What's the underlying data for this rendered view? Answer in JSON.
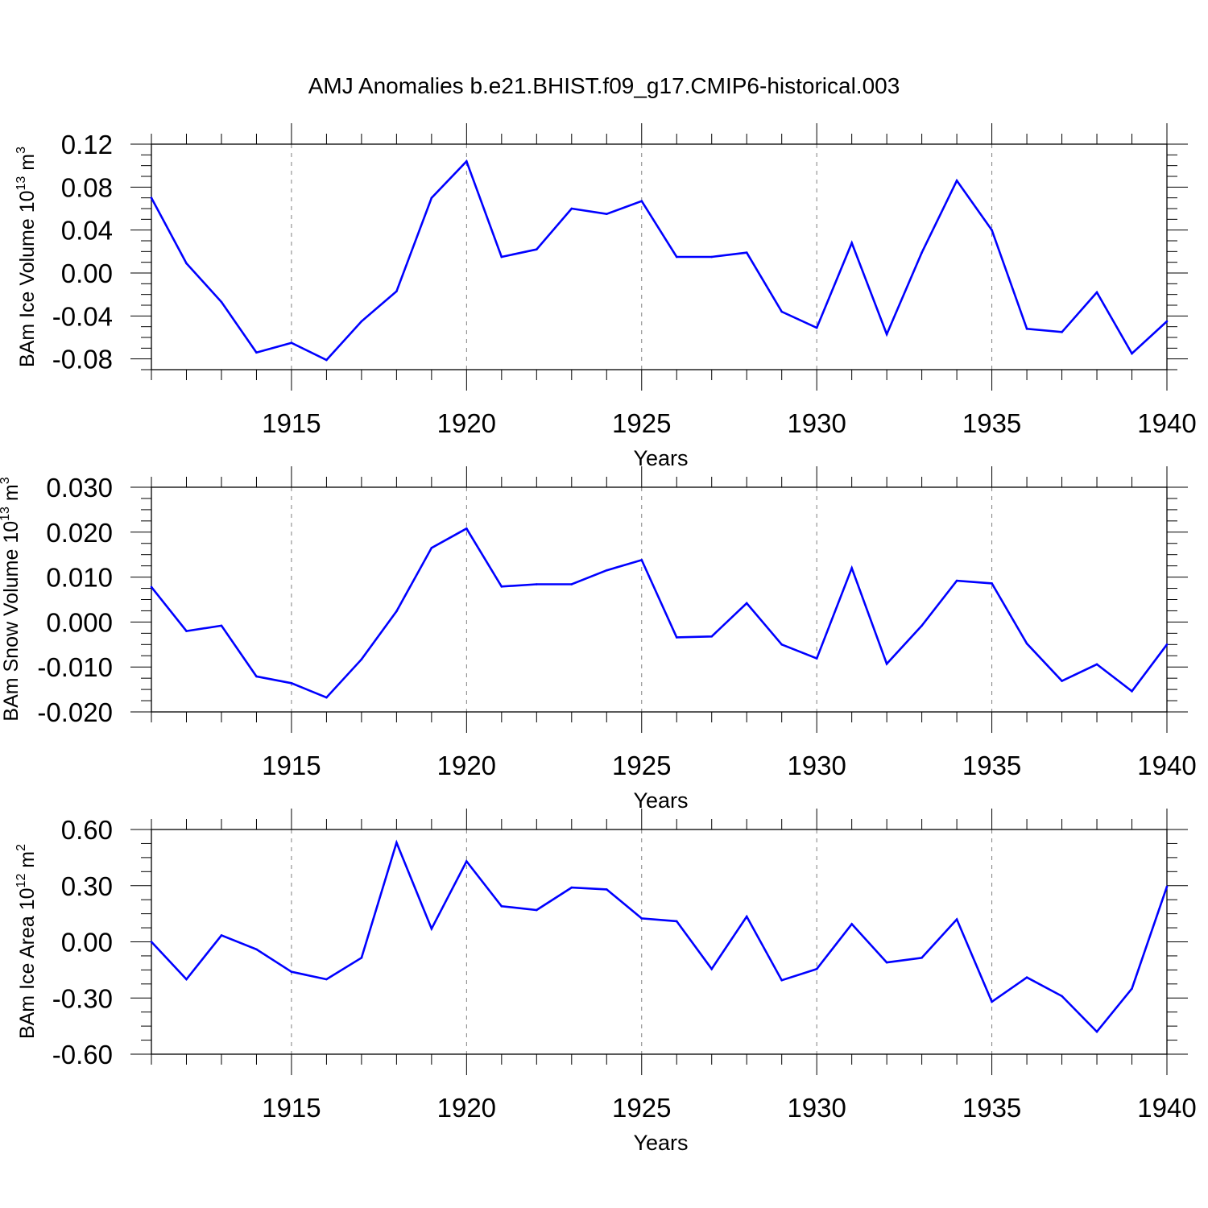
{
  "title": "AMJ Anomalies b.e21.BHIST.f09_g17.CMIP6-historical.003",
  "colors": {
    "line": "#0000ff",
    "axis": "#000000",
    "grid": "#808080"
  },
  "chart_data": [
    {
      "type": "line",
      "ylabel": {
        "text": "BAm Ice Volume 10",
        "sup": "13",
        "unit": " m",
        "unit_sup": "3"
      },
      "xlabel": "Years",
      "x_ticks": [
        "1915",
        "1920",
        "1925",
        "1930",
        "1935",
        "1940"
      ],
      "y_ticks": [
        "0.12",
        "0.08",
        "0.04",
        "0.00",
        "-0.04",
        "-0.08"
      ],
      "ylim": [
        -0.09,
        0.12
      ],
      "xlim": [
        1911,
        1940
      ],
      "grid": "vertical dashed at major x ticks",
      "x": [
        1911,
        1912,
        1913,
        1914,
        1915,
        1916,
        1917,
        1918,
        1919,
        1920,
        1921,
        1922,
        1923,
        1924,
        1925,
        1926,
        1927,
        1928,
        1929,
        1930,
        1931,
        1932,
        1933,
        1934,
        1935,
        1936,
        1937,
        1938,
        1939,
        1940
      ],
      "values": [
        0.07,
        0.009,
        -0.027,
        -0.074,
        -0.065,
        -0.081,
        -0.045,
        -0.017,
        0.07,
        0.104,
        0.015,
        0.022,
        0.06,
        0.055,
        0.067,
        0.015,
        0.015,
        0.019,
        -0.036,
        -0.051,
        0.028,
        -0.057,
        0.019,
        0.086,
        0.04,
        -0.052,
        -0.055,
        -0.018,
        -0.075,
        -0.045
      ]
    },
    {
      "type": "line",
      "ylabel": {
        "text": "BAm Snow Volume 10",
        "sup": "13",
        "unit": " m",
        "unit_sup": "3"
      },
      "xlabel": "Years",
      "x_ticks": [
        "1915",
        "1920",
        "1925",
        "1930",
        "1935",
        "1940"
      ],
      "y_ticks": [
        "0.030",
        "0.020",
        "0.010",
        "0.000",
        "-0.010",
        "-0.020"
      ],
      "ylim": [
        -0.02,
        0.03
      ],
      "xlim": [
        1911,
        1940
      ],
      "grid": "vertical dashed at major x ticks",
      "x": [
        1911,
        1912,
        1913,
        1914,
        1915,
        1916,
        1917,
        1918,
        1919,
        1920,
        1921,
        1922,
        1923,
        1924,
        1925,
        1926,
        1927,
        1928,
        1929,
        1930,
        1931,
        1932,
        1933,
        1934,
        1935,
        1936,
        1937,
        1938,
        1939,
        1940
      ],
      "values": [
        0.0078,
        -0.002,
        -0.0008,
        -0.0121,
        -0.0136,
        -0.0168,
        -0.0083,
        0.0024,
        0.0165,
        0.0208,
        0.0079,
        0.0084,
        0.0084,
        0.0115,
        0.0138,
        -0.0034,
        -0.0032,
        0.0042,
        -0.005,
        -0.0081,
        0.012,
        -0.0093,
        -0.0008,
        0.0092,
        0.0086,
        -0.0048,
        -0.0131,
        -0.0094,
        -0.0154,
        -0.005
      ]
    },
    {
      "type": "line",
      "ylabel": {
        "text": "BAm Ice Area 10",
        "sup": "12",
        "unit": " m",
        "unit_sup": "2"
      },
      "xlabel": "Years",
      "x_ticks": [
        "1915",
        "1920",
        "1925",
        "1930",
        "1935",
        "1940"
      ],
      "y_ticks": [
        "0.60",
        "0.30",
        "0.00",
        "-0.30",
        "-0.60"
      ],
      "ylim": [
        -0.6,
        0.6
      ],
      "xlim": [
        1911,
        1940
      ],
      "grid": "vertical dashed at major x ticks",
      "x": [
        1911,
        1912,
        1913,
        1914,
        1915,
        1916,
        1917,
        1918,
        1919,
        1920,
        1921,
        1922,
        1923,
        1924,
        1925,
        1926,
        1927,
        1928,
        1929,
        1930,
        1931,
        1932,
        1933,
        1934,
        1935,
        1936,
        1937,
        1938,
        1939,
        1940
      ],
      "values": [
        0.0,
        -0.2,
        0.035,
        -0.04,
        -0.16,
        -0.2,
        -0.085,
        0.53,
        0.07,
        0.43,
        0.19,
        0.17,
        0.29,
        0.28,
        0.125,
        0.11,
        -0.145,
        0.135,
        -0.205,
        -0.145,
        0.095,
        -0.11,
        -0.085,
        0.12,
        -0.32,
        -0.19,
        -0.29,
        -0.48,
        -0.25,
        0.295
      ]
    }
  ]
}
